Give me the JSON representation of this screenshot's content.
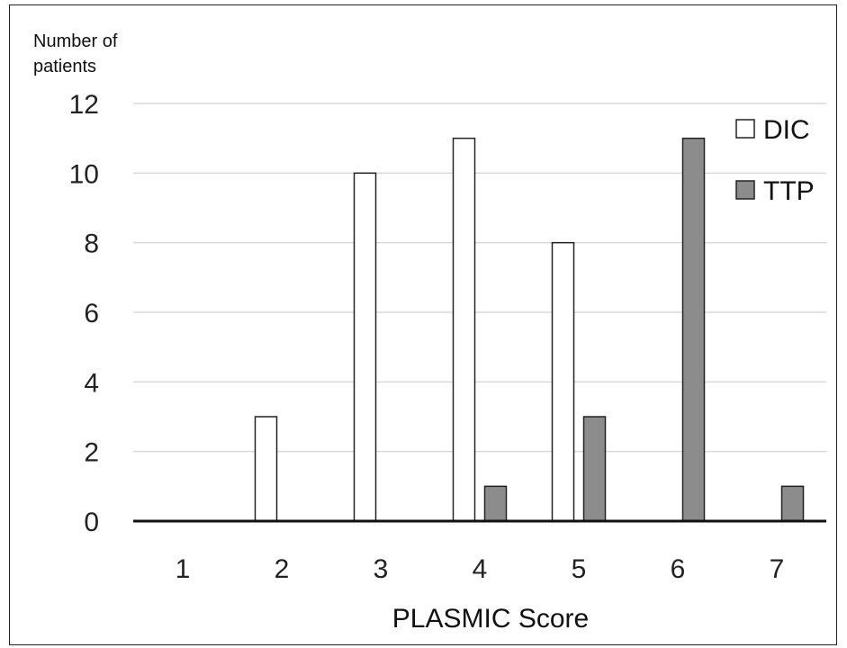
{
  "chart_data": {
    "type": "bar",
    "ylabel_line1": "Number of",
    "ylabel_line2": "patients",
    "xlabel": "PLASMIC Score",
    "categories": [
      "1",
      "2",
      "3",
      "4",
      "5",
      "6",
      "7"
    ],
    "ylim": [
      0,
      12
    ],
    "yticks": [
      0,
      2,
      4,
      6,
      8,
      10,
      12
    ],
    "grid": true,
    "legend_position": "top-right",
    "series": [
      {
        "name": "DIC",
        "color": "#ffffff",
        "values": [
          0,
          3,
          10,
          11,
          8,
          0,
          0
        ]
      },
      {
        "name": "TTP",
        "color": "#8c8c8c",
        "values": [
          0,
          0,
          0,
          1,
          3,
          11,
          1
        ]
      }
    ]
  }
}
